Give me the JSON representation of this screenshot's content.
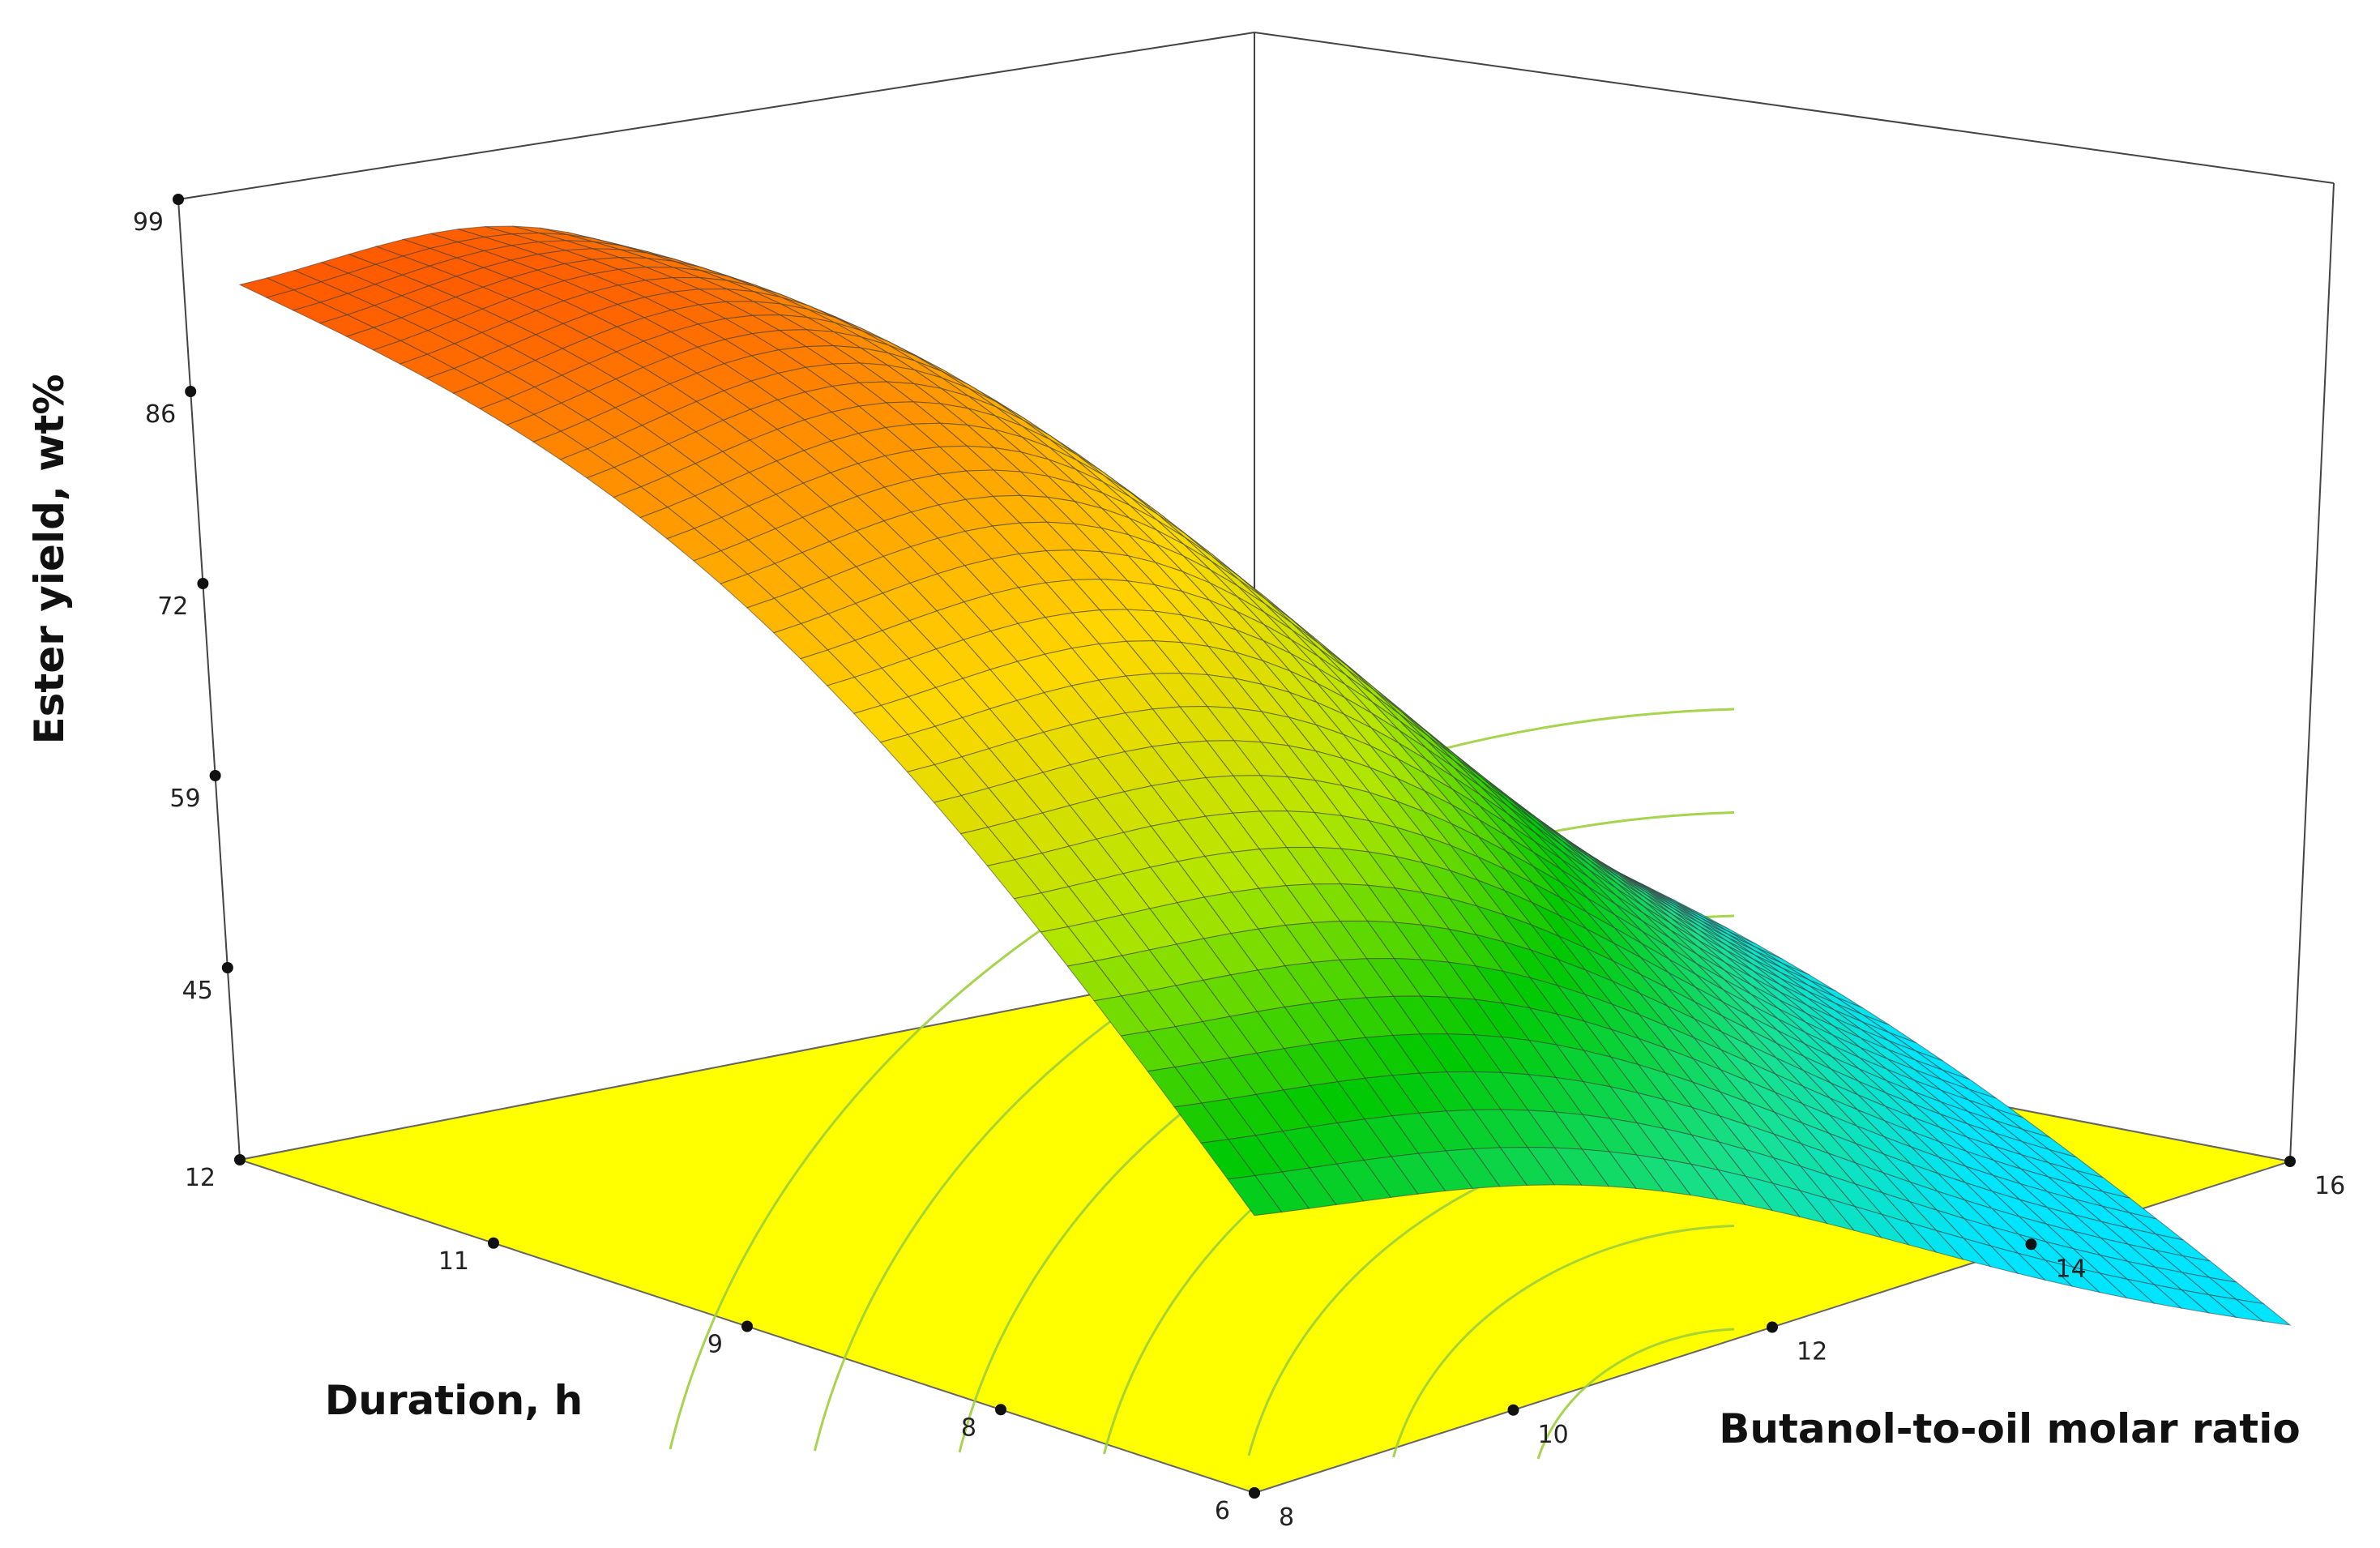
{
  "chart_data": {
    "type": "surface",
    "title": "",
    "zlabel": "Ester yield, wt%",
    "xlabel": "Butanol-to-oil molar ratio",
    "ylabel": "Duration, h",
    "x_ticks": [
      "8",
      "10",
      "12",
      "14",
      "16"
    ],
    "x_tick_values": [
      8,
      10,
      12,
      14,
      16
    ],
    "y_ticks": [
      "6",
      "8",
      "9",
      "11",
      "12"
    ],
    "y_tick_values": [
      6,
      7.5,
      9,
      10.5,
      12
    ],
    "z_ticks": [
      "45",
      "59",
      "72",
      "86",
      "99"
    ],
    "z_tick_values": [
      45,
      58.5,
      72,
      85.5,
      99
    ],
    "xlim": [
      8,
      16
    ],
    "ylim": [
      6,
      12
    ],
    "zlim": [
      31.5,
      99
    ],
    "corner_values": [
      {
        "x": 8,
        "y": 12,
        "z": 93
      },
      {
        "x": 16,
        "y": 12,
        "z": 38
      },
      {
        "x": 8,
        "y": 6,
        "z": 51
      },
      {
        "x": 16,
        "y": 6,
        "z": 20
      }
    ],
    "surface_peak": {
      "x": 9.5,
      "y": 10.5,
      "z": 101
    },
    "grid_resolution": 38,
    "colormap": [
      "#00e5ff",
      "#18e08a",
      "#00c800",
      "#b4e600",
      "#ffd700",
      "#ff8c00",
      "#ff1a00"
    ],
    "floor_color": "#ffff00",
    "contour_color": "#9ccf3a",
    "grid": false
  }
}
